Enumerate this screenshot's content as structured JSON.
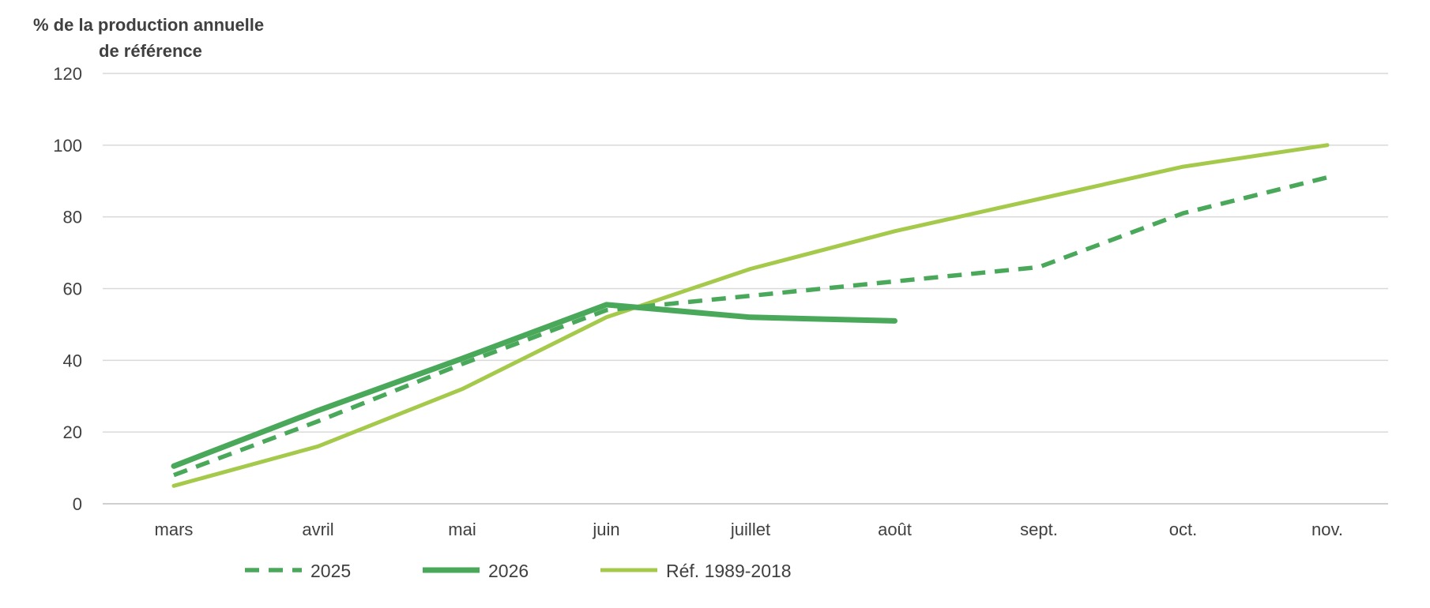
{
  "chart_data": {
    "type": "line",
    "ylabel_lines": [
      "% de la production  annuelle",
      "de référence"
    ],
    "categories": [
      "mars",
      "avril",
      "mai",
      "juin",
      "juillet",
      "août",
      "sept.",
      "oct.",
      "nov."
    ],
    "ylim": [
      0,
      120
    ],
    "yticks": [
      0,
      20,
      40,
      60,
      80,
      100,
      120
    ],
    "grid": true,
    "legend_position": "bottom",
    "series": [
      {
        "name": "2025",
        "color": "#4aa85a",
        "style": "dashed",
        "values": [
          8,
          23,
          39,
          54,
          58,
          62,
          66,
          81,
          91
        ]
      },
      {
        "name": "2026",
        "color": "#4aa85a",
        "style": "solid-thick",
        "values": [
          10.5,
          26,
          40.5,
          55.5,
          52,
          51,
          null,
          null,
          null
        ]
      },
      {
        "name": "Réf. 1989-2018",
        "color": "#a5c94a",
        "style": "solid",
        "values": [
          5,
          16,
          32,
          52,
          65.5,
          76,
          85,
          94,
          100
        ]
      }
    ]
  }
}
